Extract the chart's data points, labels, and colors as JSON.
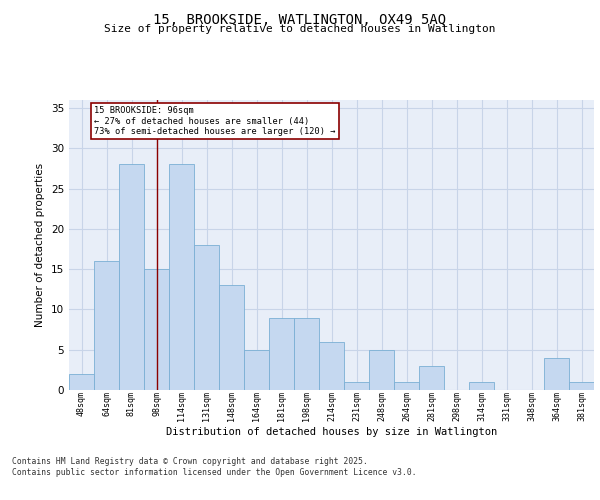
{
  "title1": "15, BROOKSIDE, WATLINGTON, OX49 5AQ",
  "title2": "Size of property relative to detached houses in Watlington",
  "xlabel": "Distribution of detached houses by size in Watlington",
  "ylabel": "Number of detached properties",
  "categories": [
    "48sqm",
    "64sqm",
    "81sqm",
    "98sqm",
    "114sqm",
    "131sqm",
    "148sqm",
    "164sqm",
    "181sqm",
    "198sqm",
    "214sqm",
    "231sqm",
    "248sqm",
    "264sqm",
    "281sqm",
    "298sqm",
    "314sqm",
    "331sqm",
    "348sqm",
    "364sqm",
    "381sqm"
  ],
  "values": [
    2,
    16,
    28,
    15,
    28,
    18,
    13,
    5,
    9,
    9,
    6,
    1,
    5,
    1,
    3,
    0,
    1,
    0,
    0,
    4,
    1
  ],
  "bar_color": "#c5d8f0",
  "bar_edge_color": "#7aafd4",
  "grid_color": "#c8d4e8",
  "bg_color": "#e8eef8",
  "vline_x": 3,
  "vline_color": "#8b0000",
  "annotation_text": "15 BROOKSIDE: 96sqm\n← 27% of detached houses are smaller (44)\n73% of semi-detached houses are larger (120) →",
  "annotation_box_color": "#8b0000",
  "footnote": "Contains HM Land Registry data © Crown copyright and database right 2025.\nContains public sector information licensed under the Open Government Licence v3.0.",
  "ylim": [
    0,
    36
  ],
  "yticks": [
    0,
    5,
    10,
    15,
    20,
    25,
    30,
    35
  ]
}
